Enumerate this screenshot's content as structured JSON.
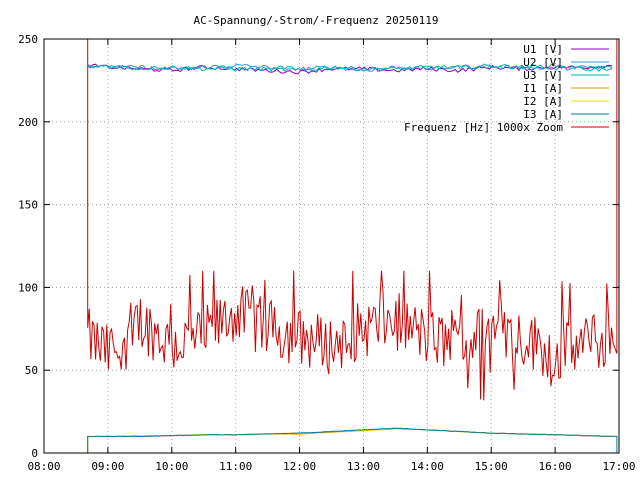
{
  "chart_data": {
    "type": "line",
    "title": "AC-Spannung/-Strom/-Frequenz 20250119",
    "xlabel": "",
    "ylabel": "",
    "xlim": [
      "08:00",
      "17:00"
    ],
    "ylim": [
      0,
      250
    ],
    "x_ticks": [
      "08:00",
      "09:00",
      "10:00",
      "11:00",
      "12:00",
      "13:00",
      "14:00",
      "15:00",
      "16:00",
      "17:00"
    ],
    "y_ticks": [
      "0",
      "50",
      "100",
      "150",
      "200",
      "250"
    ],
    "grid": true,
    "legend_position": "top-right",
    "x": [
      "08:41",
      "09:00",
      "09:30",
      "10:00",
      "10:30",
      "11:00",
      "11:30",
      "12:00",
      "12:30",
      "13:00",
      "13:30",
      "14:00",
      "14:30",
      "15:00",
      "15:30",
      "16:00",
      "16:30",
      "16:55"
    ],
    "series": [
      {
        "name": "U1 [V]",
        "color": "#8b00cc",
        "values": [
          234,
          233,
          232,
          231,
          233,
          232,
          231,
          230,
          232,
          232,
          231,
          232,
          231,
          233,
          232,
          233,
          233,
          234
        ]
      },
      {
        "name": "U2 [V]",
        "color": "#3399cc",
        "values": [
          234,
          233,
          233,
          232,
          233,
          234,
          233,
          232,
          233,
          231,
          233,
          232,
          233,
          233,
          233,
          232,
          233,
          233
        ]
      },
      {
        "name": "U3 [V]",
        "color": "#00b3b3",
        "values": [
          233,
          234,
          232,
          233,
          232,
          232,
          232,
          231,
          233,
          232,
          232,
          233,
          233,
          234,
          233,
          234,
          232,
          231
        ]
      },
      {
        "name": "I1 [A]",
        "color": "#d4a000",
        "values": [
          10,
          10,
          10,
          10.5,
          11,
          11,
          11.5,
          11.5,
          12.5,
          13.5,
          14.5,
          14,
          13,
          12,
          11.5,
          11,
          10.5,
          10
        ]
      },
      {
        "name": "I2 [A]",
        "color": "#e8e000",
        "values": [
          10,
          10,
          10.5,
          10.5,
          11,
          11,
          11.5,
          12,
          13,
          13.5,
          14.5,
          14,
          13,
          12,
          11.5,
          11,
          10.5,
          10
        ]
      },
      {
        "name": "I3 [A]",
        "color": "#007799",
        "values": [
          10,
          10,
          10,
          10.5,
          11,
          11,
          11.5,
          12,
          13,
          14,
          15,
          14,
          13,
          12,
          11.5,
          11,
          10.5,
          10
        ]
      },
      {
        "name": "Frequenz [Hz] 1000x Zoom",
        "color": "#cc0000",
        "values": [
          70,
          60,
          80,
          65,
          70,
          85,
          75,
          70,
          65,
          75,
          80,
          70,
          65,
          75,
          70,
          60,
          65,
          70
        ]
      }
    ]
  }
}
